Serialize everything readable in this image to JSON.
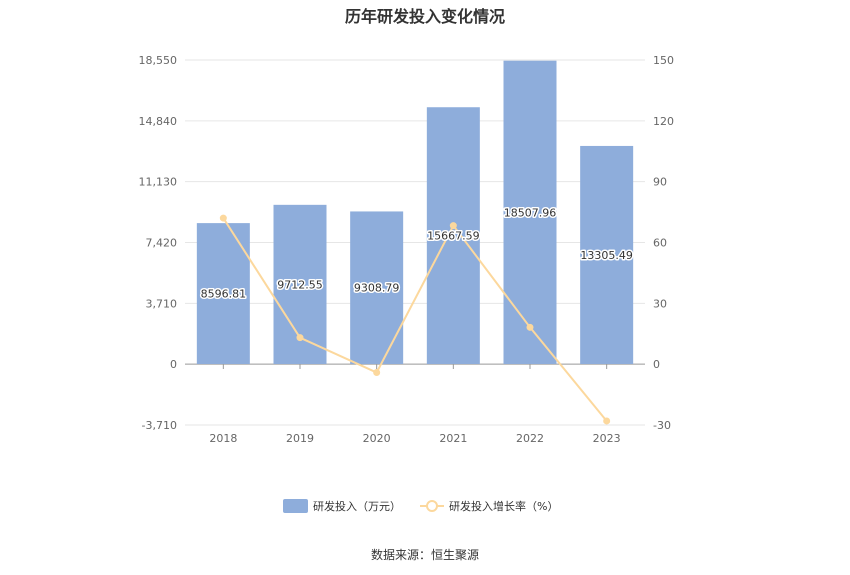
{
  "chart_data": {
    "type": "bar",
    "title": "历年研发投入变化情况",
    "categories": [
      "2018",
      "2019",
      "2020",
      "2021",
      "2022",
      "2023"
    ],
    "series": [
      {
        "name": "研发投入（万元）",
        "type": "bar",
        "axis": "left",
        "color": "#8eaddb",
        "values": [
          8596.81,
          9712.55,
          9308.79,
          15667.59,
          18507.96,
          13305.49
        ]
      },
      {
        "name": "研发投入增长率（%）",
        "type": "line",
        "axis": "right",
        "color": "#fcd89d",
        "values": [
          72,
          13,
          -4.2,
          68.3,
          18.1,
          -28.1
        ]
      }
    ],
    "y_left": {
      "ticks": [
        "18,550",
        "14,840",
        "11,130",
        "7,420",
        "3,710",
        "0",
        "-3,710"
      ],
      "min": -3710,
      "max": 18550
    },
    "y_right": {
      "ticks": [
        "150",
        "120",
        "90",
        "60",
        "30",
        "0",
        "-30"
      ],
      "min": -30,
      "max": 150
    },
    "legend_position": "bottom-center",
    "source": "数据来源：恒生聚源"
  }
}
